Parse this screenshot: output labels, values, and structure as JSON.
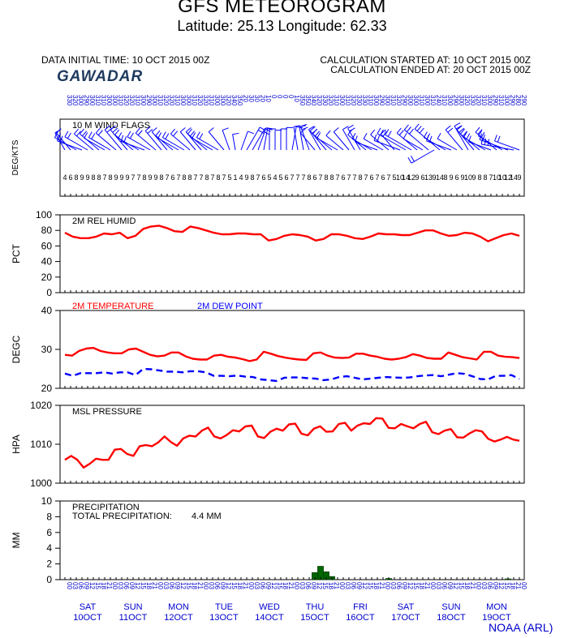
{
  "header": {
    "title": "GFS METEOROGRAM",
    "subtitle": "Latitude: 25.13 Longitude:  62.33",
    "initial_time": "DATA INITIAL TIME: 10 OCT 2015 00Z",
    "calc_started": "CALCULATION STARTED AT: 10 OCT 2015 00Z",
    "calc_ended": "CALCULATION ENDED AT: 20 OCT 2015 00Z",
    "station": "GAWADAR",
    "credit": "NOAA (ARL)"
  },
  "colors": {
    "temperature": "#ff0000",
    "dewpoint": "#0000ff",
    "precip": "#006600",
    "axis_text": "#0000cc"
  },
  "time_axis": {
    "hour_labels": [
      "00",
      "03",
      "06",
      "09",
      "12",
      "15",
      "18",
      "21"
    ],
    "days": [
      {
        "weekday": "SAT",
        "date": "10OCT"
      },
      {
        "weekday": "SUN",
        "date": "11OCT"
      },
      {
        "weekday": "MON",
        "date": "12OCT"
      },
      {
        "weekday": "TUE",
        "date": "13OCT"
      },
      {
        "weekday": "WED",
        "date": "14OCT"
      },
      {
        "weekday": "THU",
        "date": "15OCT"
      },
      {
        "weekday": "FRI",
        "date": "16OCT"
      },
      {
        "weekday": "SAT",
        "date": "17OCT"
      },
      {
        "weekday": "SUN",
        "date": "18OCT"
      },
      {
        "weekday": "MON",
        "date": "19OCT"
      }
    ],
    "first_hour_label": "00"
  },
  "chart_data": [
    {
      "type": "barbs",
      "title": "10 M  WIND FLAGS",
      "ylabel": "DEG/KTS",
      "speeds_kts": [
        4,
        6,
        8,
        9,
        9,
        8,
        8,
        7,
        8,
        9,
        9,
        9,
        7,
        7,
        8,
        9,
        9,
        8,
        7,
        6,
        7,
        8,
        8,
        7,
        7,
        8,
        7,
        8,
        7,
        5,
        1,
        4,
        9,
        8,
        7,
        6,
        5,
        4,
        5,
        6,
        7,
        7,
        7,
        8,
        6,
        7,
        8,
        8,
        7,
        6,
        7,
        7,
        8,
        7,
        6,
        7,
        6,
        7,
        5,
        10,
        14,
        12,
        9,
        6,
        13,
        9,
        14,
        8,
        9,
        6,
        9,
        10,
        9,
        8,
        8,
        7,
        10,
        10,
        12,
        14,
        9
      ],
      "directions_deg": [
        330,
        320,
        300,
        290,
        300,
        310,
        310,
        300,
        300,
        310,
        320,
        320,
        310,
        300,
        290,
        300,
        310,
        320,
        320,
        310,
        300,
        300,
        310,
        320,
        320,
        310,
        300,
        300,
        320,
        340,
        350,
        20,
        30,
        30,
        20,
        10,
        0,
        0,
        0,
        0,
        10,
        350,
        350,
        340,
        320,
        330,
        320,
        310,
        300,
        310,
        320,
        330,
        330,
        310,
        300,
        290,
        300,
        310,
        320,
        290,
        300,
        300,
        310,
        300,
        310,
        240,
        310,
        300,
        290,
        300,
        320,
        330,
        320,
        310,
        300,
        290,
        310,
        300,
        290,
        280,
        290
      ],
      "xlabel": ""
    },
    {
      "type": "line",
      "title": "2M REL HUMID",
      "ylabel": "PCT",
      "ylim": [
        0,
        100
      ],
      "yticks": [
        0,
        20,
        40,
        60,
        80,
        100
      ],
      "series": [
        {
          "values": [
            77,
            72,
            70,
            70,
            72,
            76,
            75,
            77,
            70,
            73,
            82,
            85,
            86,
            83,
            79,
            78,
            85,
            83,
            80,
            77,
            75,
            75,
            76,
            76,
            75,
            75,
            67,
            69,
            73,
            75,
            74,
            72,
            67,
            69,
            75,
            75,
            73,
            70,
            69,
            72,
            76,
            75,
            75,
            74,
            74,
            77,
            80,
            80,
            76,
            73,
            74,
            77,
            76,
            72,
            66,
            70,
            74,
            76,
            73
          ]
        }
      ]
    },
    {
      "type": "line",
      "title": "",
      "ylabel": "DEGC",
      "ylim": [
        20,
        40
      ],
      "yticks": [
        20,
        30,
        40
      ],
      "series": [
        {
          "name": "2M TEMPERATURE",
          "values": [
            28.6,
            28.4,
            29.6,
            30.2,
            30.4,
            29.6,
            29.2,
            29.0,
            29.0,
            30.0,
            30.2,
            29.4,
            28.6,
            28.2,
            28.4,
            29.2,
            29.2,
            28.2,
            27.6,
            27.4,
            27.4,
            28.4,
            28.6,
            28.1,
            27.9,
            27.5,
            27.0,
            27.4,
            29.4,
            28.9,
            28.3,
            27.9,
            27.6,
            27.4,
            27.3,
            29.0,
            29.2,
            28.4,
            27.9,
            27.8,
            27.9,
            28.9,
            28.9,
            28.4,
            28.1,
            27.6,
            27.4,
            27.6,
            28.0,
            28.8,
            28.4,
            27.8,
            27.6,
            27.6,
            29.2,
            28.6,
            28.0,
            27.7,
            27.4,
            29.4,
            29.4,
            28.4,
            28.1,
            28.0,
            27.8
          ]
        },
        {
          "name": "2M   DEW POINT",
          "values": [
            23.8,
            23.2,
            23.9,
            23.9,
            23.9,
            24.1,
            23.8,
            24.1,
            24.1,
            23.4,
            25.0,
            24.9,
            24.6,
            24.3,
            24.3,
            24.1,
            24.4,
            24.4,
            24.1,
            23.2,
            23.2,
            23.1,
            23.3,
            23.0,
            22.9,
            22.3,
            22.1,
            21.9,
            22.7,
            22.8,
            22.8,
            22.6,
            22.5,
            22.1,
            22.3,
            22.9,
            23.1,
            22.7,
            22.3,
            22.5,
            22.7,
            22.9,
            22.8,
            22.7,
            22.8,
            23.1,
            23.3,
            23.4,
            23.1,
            23.5,
            23.9,
            23.7,
            23.1,
            22.4,
            22.3,
            23.2,
            23.2,
            23.4,
            22.4
          ]
        }
      ]
    },
    {
      "type": "line",
      "title": "MSL PRESSURE",
      "ylabel": "HPA",
      "ylim": [
        1000,
        1020
      ],
      "yticks": [
        1000,
        1010,
        1020
      ],
      "series": [
        {
          "values": [
            1006.0,
            1007.0,
            1006.0,
            1004.0,
            1005.0,
            1006.3,
            1006.0,
            1006.0,
            1008.6,
            1008.8,
            1007.5,
            1007.0,
            1009.5,
            1009.8,
            1009.5,
            1010.5,
            1012.0,
            1010.6,
            1009.6,
            1011.5,
            1012.2,
            1012.0,
            1013.5,
            1014.3,
            1012.0,
            1011.5,
            1012.4,
            1013.6,
            1013.3,
            1014.6,
            1014.8,
            1012.0,
            1011.6,
            1013.2,
            1014.0,
            1013.5,
            1015.1,
            1015.3,
            1012.7,
            1012.3,
            1014.0,
            1014.6,
            1013.2,
            1013.3,
            1015.2,
            1015.5,
            1013.5,
            1014.8,
            1015.4,
            1015.2,
            1016.7,
            1016.6,
            1014.2,
            1014.1,
            1015.2,
            1014.6,
            1014.1,
            1015.2,
            1015.8,
            1013.1,
            1012.6,
            1013.5,
            1013.9,
            1011.8,
            1011.7,
            1012.8,
            1013.6,
            1013.3,
            1011.4,
            1010.7,
            1011.2,
            1011.9,
            1011.2,
            1010.9
          ]
        }
      ]
    },
    {
      "type": "bar",
      "title": "PRECIPITATION",
      "annotation_label": "TOTAL PRECIPITATION:",
      "annotation_value": "4.4 MM",
      "ylabel": "MM",
      "ylim": [
        0,
        10
      ],
      "yticks": [
        0,
        2,
        4,
        6,
        8,
        10
      ],
      "bars": [
        {
          "index": 44,
          "value": 0.9
        },
        {
          "index": 45,
          "value": 1.7
        },
        {
          "index": 46,
          "value": 1.0
        },
        {
          "index": 47,
          "value": 0.4
        },
        {
          "index": 57,
          "value": 0.15
        },
        {
          "index": 78,
          "value": 0.1
        }
      ]
    }
  ]
}
